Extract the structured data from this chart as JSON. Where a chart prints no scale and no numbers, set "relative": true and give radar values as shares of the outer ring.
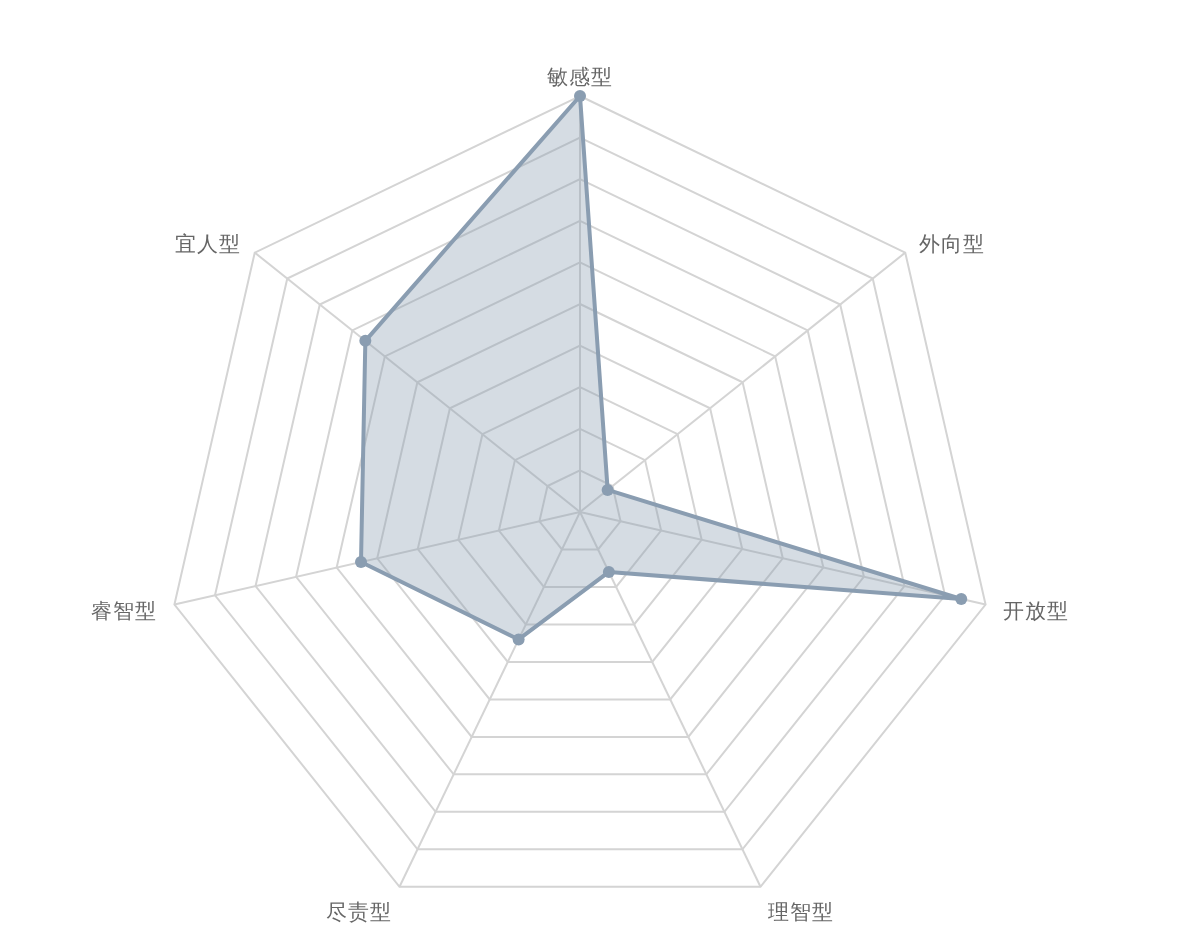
{
  "chart_data": {
    "type": "radar",
    "categories": [
      "敏感型",
      "外向型",
      "开放型",
      "理智型",
      "尽责型",
      "睿智型",
      "宜人型"
    ],
    "series": [
      {
        "color": "#8a9db1",
        "values": [
          1.0,
          0.085,
          0.94,
          0.16,
          0.34,
          0.54,
          0.66
        ]
      }
    ],
    "relative": true,
    "grid": true,
    "marker": "circle"
  }
}
